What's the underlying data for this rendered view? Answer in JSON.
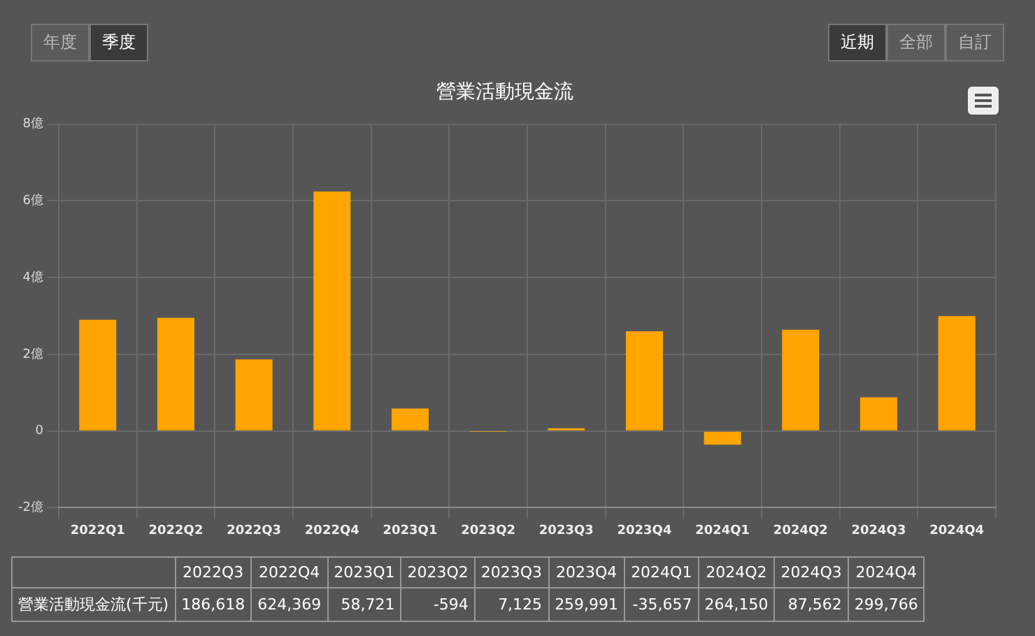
{
  "chart_data": {
    "type": "bar",
    "title": "營業活動現金流",
    "categories": [
      "2022Q1",
      "2022Q2",
      "2022Q3",
      "2022Q4",
      "2023Q1",
      "2023Q2",
      "2023Q3",
      "2023Q4",
      "2024Q1",
      "2024Q2",
      "2024Q3",
      "2024Q4"
    ],
    "series": [
      {
        "name": "營業活動現金流(千元)",
        "color": "#ffa500",
        "values": [
          2.9,
          2.95,
          1.86618,
          6.24369,
          0.58721,
          -0.00594,
          0.07125,
          2.59991,
          -0.35657,
          2.6415,
          0.87562,
          2.99766
        ]
      }
    ],
    "value_labels": [
      null,
      null,
      "186,618",
      "624,369",
      "58,721",
      "-594",
      "7,125",
      "259,991",
      "-35,657",
      "264,150",
      "87,562",
      "299,766"
    ],
    "ylim": [
      -2,
      8
    ],
    "yticks": [
      {
        "value": -2,
        "label": "-2億"
      },
      0,
      {
        "value": 2,
        "label": "2億"
      },
      {
        "value": 4,
        "label": "4億"
      },
      {
        "value": 6,
        "label": "6億"
      },
      {
        "value": 8,
        "label": "8億"
      }
    ],
    "grid": true,
    "annotations": [
      "年度",
      "季度",
      "近期",
      "全部",
      "自訂"
    ]
  }
}
